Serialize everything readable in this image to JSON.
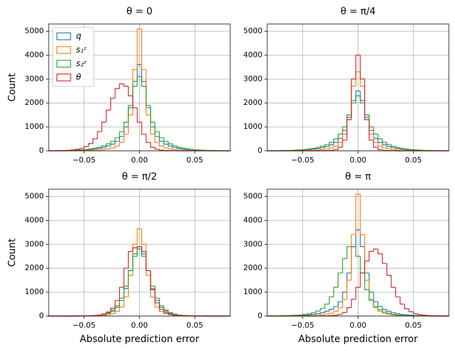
{
  "chart_data": [
    {
      "type": "histogram",
      "title": "θ = 0",
      "ylabel": "Count",
      "legend": "upper left",
      "grid": true,
      "xlim": [
        -0.082,
        0.082
      ],
      "ylim": [
        0,
        5300
      ],
      "xticks": [
        {
          "value": -0.05,
          "label": "−0.05"
        },
        {
          "value": 0,
          "label": "0.00"
        },
        0.05
      ],
      "yticks": [
        0,
        1000,
        2000,
        3000,
        4000,
        5000
      ],
      "bins": [
        -0.082,
        -0.078,
        -0.074,
        -0.07,
        -0.066,
        -0.062,
        -0.058,
        -0.054,
        -0.05,
        -0.046,
        -0.042,
        -0.038,
        -0.034,
        -0.03,
        -0.026,
        -0.022,
        -0.018,
        -0.014,
        -0.01,
        -0.006,
        -0.002,
        0.002,
        0.006,
        0.01,
        0.014,
        0.018,
        0.022,
        0.026,
        0.03,
        0.034,
        0.038,
        0.042,
        0.046,
        0.05,
        0.054,
        0.058,
        0.062,
        0.066,
        0.07,
        0.074,
        0.078,
        0.082
      ],
      "series": [
        {
          "name": "q",
          "color": "#1f77b4",
          "values": [
            1,
            2,
            3,
            5,
            8,
            12,
            18,
            25,
            35,
            50,
            70,
            100,
            140,
            200,
            280,
            400,
            600,
            1000,
            1800,
            2900,
            3600,
            2900,
            1800,
            1000,
            600,
            400,
            280,
            200,
            140,
            100,
            70,
            50,
            35,
            25,
            18,
            12,
            8,
            5,
            3,
            2,
            1
          ]
        },
        {
          "name": "s₁ᶻ",
          "color": "#ff7f0e",
          "values": [
            0,
            0,
            0,
            1,
            1,
            2,
            3,
            5,
            8,
            12,
            20,
            30,
            50,
            80,
            120,
            200,
            350,
            700,
            1500,
            3400,
            5100,
            3400,
            1500,
            700,
            350,
            200,
            120,
            80,
            50,
            30,
            20,
            12,
            8,
            5,
            3,
            2,
            1,
            1,
            0,
            0,
            0
          ]
        },
        {
          "name": "s₂ᶻ",
          "color": "#2ca02c",
          "values": [
            2,
            4,
            6,
            9,
            14,
            20,
            28,
            40,
            55,
            80,
            110,
            150,
            210,
            290,
            400,
            550,
            800,
            1200,
            1900,
            2700,
            3100,
            2700,
            1900,
            1200,
            800,
            550,
            400,
            290,
            210,
            150,
            110,
            80,
            55,
            40,
            28,
            20,
            14,
            9,
            6,
            4,
            2
          ]
        },
        {
          "name": "θ",
          "color": "#d62728",
          "values": [
            2,
            4,
            7,
            12,
            20,
            35,
            60,
            100,
            180,
            300,
            500,
            800,
            1200,
            1700,
            2200,
            2600,
            2800,
            2700,
            2300,
            1800,
            1200,
            700,
            350,
            150,
            70,
            30,
            15,
            8,
            4,
            2,
            0,
            0,
            0,
            0,
            0,
            0,
            0,
            0,
            0,
            0,
            0
          ]
        }
      ]
    },
    {
      "type": "histogram",
      "title": "θ = π/4",
      "grid": true,
      "xlim": [
        -0.082,
        0.082
      ],
      "ylim": [
        0,
        5300
      ],
      "xticks": [
        {
          "value": -0.05,
          "label": "−0.05"
        },
        {
          "value": 0,
          "label": "0.00"
        },
        0.05
      ],
      "yticks": [
        0,
        1000,
        2000,
        3000,
        4000,
        5000
      ],
      "bins": [
        -0.082,
        -0.078,
        -0.074,
        -0.07,
        -0.066,
        -0.062,
        -0.058,
        -0.054,
        -0.05,
        -0.046,
        -0.042,
        -0.038,
        -0.034,
        -0.03,
        -0.026,
        -0.022,
        -0.018,
        -0.014,
        -0.01,
        -0.006,
        -0.002,
        0.002,
        0.006,
        0.01,
        0.014,
        0.018,
        0.022,
        0.026,
        0.03,
        0.034,
        0.038,
        0.042,
        0.046,
        0.05,
        0.054,
        0.058,
        0.062,
        0.066,
        0.07,
        0.074,
        0.078,
        0.082
      ],
      "series": [
        {
          "color": "#1f77b4",
          "values": [
            1,
            2,
            3,
            5,
            8,
            12,
            18,
            25,
            35,
            50,
            70,
            95,
            130,
            180,
            250,
            350,
            520,
            850,
            1400,
            2100,
            2500,
            2100,
            1400,
            850,
            520,
            350,
            250,
            180,
            130,
            95,
            70,
            50,
            35,
            25,
            18,
            12,
            8,
            5,
            3,
            2,
            1
          ]
        },
        {
          "color": "#ff7f0e",
          "values": [
            0,
            0,
            0,
            1,
            1,
            2,
            3,
            5,
            8,
            12,
            20,
            30,
            50,
            80,
            120,
            200,
            350,
            700,
            1500,
            2700,
            3300,
            2700,
            1500,
            700,
            350,
            200,
            120,
            80,
            50,
            30,
            20,
            12,
            8,
            5,
            3,
            2,
            1,
            1,
            0,
            0,
            0
          ]
        },
        {
          "color": "#2ca02c",
          "values": [
            2,
            4,
            6,
            9,
            14,
            20,
            28,
            40,
            55,
            75,
            100,
            140,
            190,
            260,
            360,
            500,
            700,
            1000,
            1500,
            2000,
            2300,
            2000,
            1500,
            1000,
            700,
            500,
            360,
            260,
            190,
            140,
            100,
            75,
            55,
            40,
            28,
            20,
            14,
            9,
            6,
            4,
            2
          ]
        },
        {
          "color": "#d62728",
          "values": [
            0,
            0,
            0,
            0,
            0,
            0,
            0,
            0,
            0,
            0,
            0,
            1,
            3,
            8,
            20,
            50,
            150,
            450,
            1300,
            3000,
            4000,
            3000,
            1300,
            450,
            150,
            50,
            20,
            8,
            3,
            1,
            0,
            0,
            0,
            0,
            0,
            0,
            0,
            0,
            0,
            0,
            0
          ]
        }
      ]
    },
    {
      "type": "histogram",
      "title": "θ = π/2",
      "ylabel": "Count",
      "xlabel": "Absolute prediction error",
      "grid": true,
      "xlim": [
        -0.082,
        0.082
      ],
      "ylim": [
        0,
        5300
      ],
      "xticks": [
        {
          "value": -0.05,
          "label": "−0.05"
        },
        {
          "value": 0,
          "label": "0.00"
        },
        0.05
      ],
      "yticks": [
        0,
        1000,
        2000,
        3000,
        4000,
        5000
      ],
      "bins": [
        -0.082,
        -0.078,
        -0.074,
        -0.07,
        -0.066,
        -0.062,
        -0.058,
        -0.054,
        -0.05,
        -0.046,
        -0.042,
        -0.038,
        -0.034,
        -0.03,
        -0.026,
        -0.022,
        -0.018,
        -0.014,
        -0.01,
        -0.006,
        -0.002,
        0.002,
        0.006,
        0.01,
        0.014,
        0.018,
        0.022,
        0.026,
        0.03,
        0.034,
        0.038,
        0.042,
        0.046,
        0.05,
        0.054,
        0.058,
        0.062,
        0.066,
        0.07,
        0.074,
        0.078,
        0.082
      ],
      "series": [
        {
          "color": "#1f77b4",
          "values": [
            0,
            0,
            0,
            0,
            0,
            1,
            2,
            3,
            5,
            9,
            17,
            32,
            60,
            110,
            200,
            360,
            650,
            1150,
            1900,
            2600,
            2900,
            2600,
            1900,
            1150,
            650,
            360,
            200,
            110,
            60,
            32,
            17,
            9,
            5,
            3,
            2,
            1,
            0,
            0,
            0,
            0,
            0
          ]
        },
        {
          "color": "#ff7f0e",
          "values": [
            0,
            0,
            0,
            0,
            0,
            0,
            1,
            2,
            3,
            5,
            9,
            16,
            30,
            55,
            100,
            190,
            380,
            800,
            1700,
            3000,
            3650,
            3000,
            1700,
            800,
            380,
            190,
            100,
            55,
            30,
            16,
            9,
            5,
            3,
            2,
            1,
            0,
            0,
            0,
            0,
            0,
            0
          ]
        },
        {
          "color": "#2ca02c",
          "values": [
            0,
            0,
            0,
            0,
            0,
            1,
            2,
            4,
            8,
            14,
            25,
            45,
            80,
            140,
            250,
            430,
            750,
            1250,
            1900,
            2500,
            2800,
            2500,
            1900,
            1250,
            750,
            430,
            250,
            140,
            80,
            45,
            25,
            14,
            8,
            4,
            2,
            1,
            0,
            0,
            0,
            0,
            0
          ]
        },
        {
          "color": "#d62728",
          "values": [
            0,
            0,
            0,
            0,
            0,
            0,
            1,
            2,
            5,
            10,
            20,
            40,
            85,
            170,
            330,
            650,
            1200,
            2000,
            2700,
            2850,
            2900,
            2700,
            1900,
            1100,
            550,
            280,
            140,
            70,
            35,
            17,
            8,
            4,
            2,
            1,
            0,
            0,
            0,
            0,
            0,
            0,
            0
          ]
        }
      ]
    },
    {
      "type": "histogram",
      "title": "θ = π",
      "xlabel": "Absolute prediction error",
      "grid": true,
      "xlim": [
        -0.082,
        0.082
      ],
      "ylim": [
        0,
        5300
      ],
      "xticks": [
        {
          "value": -0.05,
          "label": "−0.05"
        },
        {
          "value": 0,
          "label": "0.00"
        },
        0.05
      ],
      "yticks": [
        0,
        1000,
        2000,
        3000,
        4000,
        5000
      ],
      "bins": [
        -0.082,
        -0.078,
        -0.074,
        -0.07,
        -0.066,
        -0.062,
        -0.058,
        -0.054,
        -0.05,
        -0.046,
        -0.042,
        -0.038,
        -0.034,
        -0.03,
        -0.026,
        -0.022,
        -0.018,
        -0.014,
        -0.01,
        -0.006,
        -0.002,
        0.002,
        0.006,
        0.01,
        0.014,
        0.018,
        0.022,
        0.026,
        0.03,
        0.034,
        0.038,
        0.042,
        0.046,
        0.05,
        0.054,
        0.058,
        0.062,
        0.066,
        0.07,
        0.074,
        0.078,
        0.082
      ],
      "series": [
        {
          "color": "#1f77b4",
          "values": [
            1,
            2,
            3,
            5,
            8,
            12,
            18,
            25,
            35,
            50,
            70,
            100,
            140,
            200,
            280,
            400,
            600,
            1000,
            1800,
            2900,
            3600,
            2900,
            1800,
            1000,
            600,
            400,
            280,
            200,
            140,
            100,
            70,
            50,
            35,
            25,
            18,
            12,
            8,
            5,
            3,
            2,
            1
          ]
        },
        {
          "color": "#ff7f0e",
          "values": [
            0,
            0,
            0,
            1,
            1,
            2,
            3,
            5,
            8,
            12,
            20,
            30,
            50,
            80,
            120,
            200,
            350,
            700,
            1500,
            3400,
            5100,
            3400,
            1500,
            700,
            350,
            200,
            120,
            80,
            50,
            30,
            20,
            12,
            8,
            5,
            3,
            2,
            1,
            1,
            0,
            0,
            0
          ]
        },
        {
          "color": "#2ca02c",
          "values": [
            2,
            4,
            6,
            10,
            15,
            22,
            32,
            45,
            65,
            95,
            140,
            210,
            320,
            500,
            800,
            1200,
            1800,
            2400,
            2900,
            2900,
            2500,
            1800,
            1100,
            650,
            400,
            260,
            170,
            110,
            70,
            45,
            30,
            20,
            12,
            8,
            5,
            3,
            2,
            1,
            1,
            0,
            0
          ]
        },
        {
          "color": "#d62728",
          "values": [
            0,
            0,
            0,
            0,
            0,
            0,
            0,
            0,
            0,
            0,
            0,
            2,
            4,
            8,
            15,
            30,
            70,
            150,
            350,
            700,
            1200,
            1800,
            2300,
            2700,
            2800,
            2600,
            2200,
            1700,
            1200,
            800,
            500,
            300,
            180,
            100,
            60,
            35,
            20,
            12,
            7,
            4,
            2
          ]
        }
      ]
    }
  ]
}
